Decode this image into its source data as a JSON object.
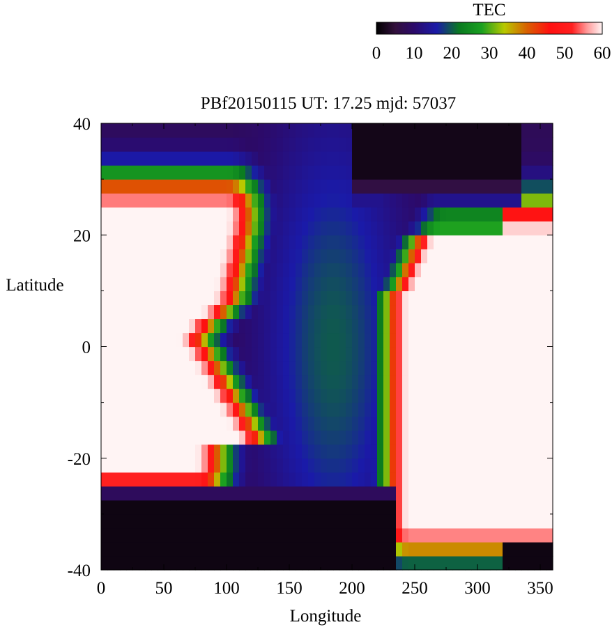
{
  "chart_data": {
    "type": "heatmap",
    "title": "PBf20150115  UT: 17.25  mjd: 57037",
    "xlabel": "Longitude",
    "ylabel": "Latitude",
    "xlim": [
      0,
      360
    ],
    "ylim": [
      -40,
      40
    ],
    "x_ticks": [
      "0",
      "50",
      "100",
      "150",
      "200",
      "250",
      "300",
      "350"
    ],
    "y_ticks": [
      "-40",
      "-20",
      "0",
      "20",
      "40"
    ],
    "colorbar": {
      "label": "TEC",
      "range": [
        0,
        60
      ],
      "ticks": [
        "0",
        "10",
        "20",
        "30",
        "40",
        "50",
        "60"
      ],
      "stops": [
        {
          "value": 0,
          "color": "#000000"
        },
        {
          "value": 5,
          "color": "#32103c"
        },
        {
          "value": 10,
          "color": "#2c0a6a"
        },
        {
          "value": 16,
          "color": "#1a1aa8"
        },
        {
          "value": 22,
          "color": "#0a7a20"
        },
        {
          "value": 28,
          "color": "#1aa020"
        },
        {
          "value": 34,
          "color": "#b8c800"
        },
        {
          "value": 40,
          "color": "#d86000"
        },
        {
          "value": 46,
          "color": "#ff1010"
        },
        {
          "value": 52,
          "color": "#ff2020"
        },
        {
          "value": 56,
          "color": "#ff9a9a"
        },
        {
          "value": 60,
          "color": "#fff4f4"
        }
      ]
    },
    "grid_resolution": {
      "lon_step": 5,
      "lat_step": 2.5
    },
    "field_features": {
      "background_tec": 8,
      "west_crest_tec": 60,
      "east_crest_tec": 60,
      "trough_tec": 20,
      "dark_north_tec": 2,
      "dark_south_tec": 1.5
    }
  }
}
